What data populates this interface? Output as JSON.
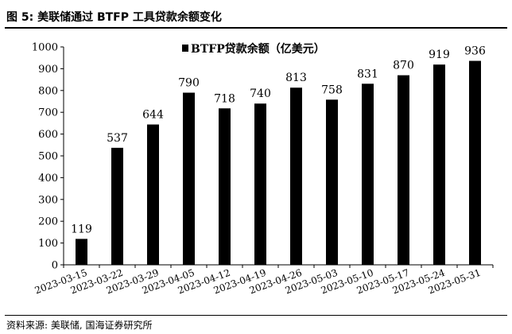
{
  "figure": {
    "title": "图 5:  美联储通过 BTFP 工具贷款余额变化",
    "source": "资料来源:  美联储, 国海证券研究所"
  },
  "chart_data": {
    "type": "bar",
    "categories": [
      "2023-03-15",
      "2023-03-22",
      "2023-03-29",
      "2023-04-05",
      "2023-04-12",
      "2023-04-19",
      "2023-04-26",
      "2023-05-03",
      "2023-05-10",
      "2023-05-17",
      "2023-05-24",
      "2023-05-31"
    ],
    "series": [
      {
        "name": "BTFP贷款余额（亿美元）",
        "values": [
          119,
          537,
          644,
          790,
          718,
          740,
          813,
          758,
          831,
          870,
          919,
          936
        ]
      }
    ],
    "title": "",
    "xlabel": "",
    "ylabel": "",
    "ylim": [
      0,
      1000
    ],
    "yticks": [
      0,
      100,
      200,
      300,
      400,
      500,
      600,
      700,
      800,
      900,
      1000
    ],
    "grid": false,
    "legend_position": "top-center",
    "bar_color": "#000000"
  }
}
